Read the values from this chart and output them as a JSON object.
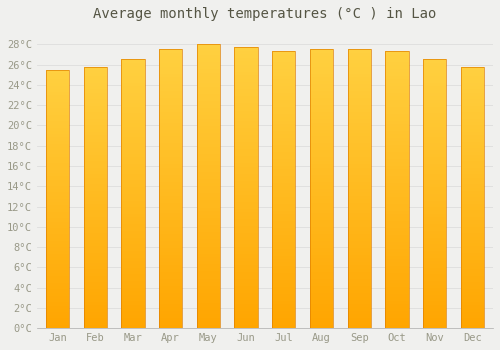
{
  "title": "Average monthly temperatures (°C ) in Lao",
  "months": [
    "Jan",
    "Feb",
    "Mar",
    "Apr",
    "May",
    "Jun",
    "Jul",
    "Aug",
    "Sep",
    "Oct",
    "Nov",
    "Dec"
  ],
  "values": [
    25.5,
    25.8,
    26.5,
    27.5,
    28.0,
    27.7,
    27.3,
    27.5,
    27.5,
    27.3,
    26.5,
    25.8
  ],
  "ylim": [
    0,
    29.5
  ],
  "yticks": [
    0,
    2,
    4,
    6,
    8,
    10,
    12,
    14,
    16,
    18,
    20,
    22,
    24,
    26,
    28
  ],
  "bar_color_bottom": "#FFA500",
  "bar_color_top": "#FFD040",
  "bar_edge_color": "#E08000",
  "background_color": "#f0f0ee",
  "plot_bg_color": "#f0f0ee",
  "grid_color": "#dddddd",
  "title_fontsize": 10,
  "tick_fontsize": 7.5,
  "font_color": "#999988",
  "title_color": "#555544"
}
